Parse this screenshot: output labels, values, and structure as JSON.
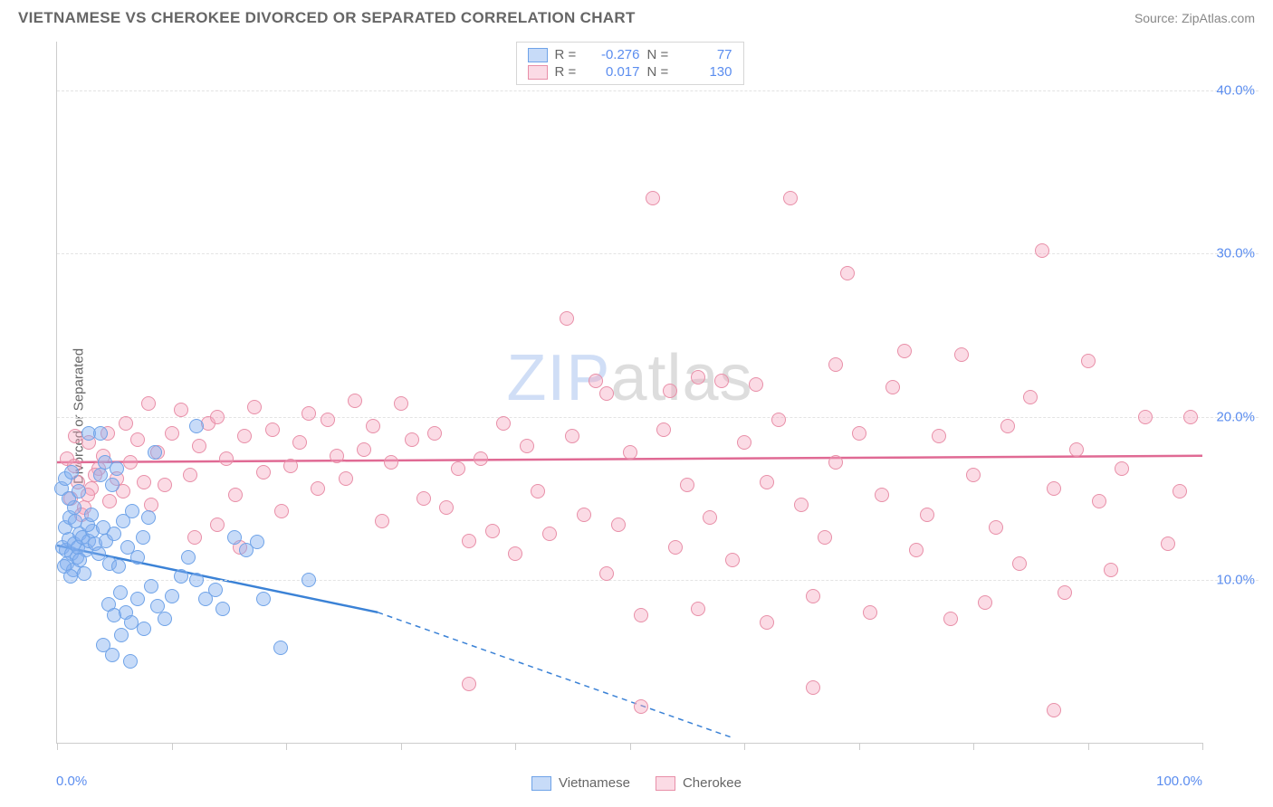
{
  "title": "VIETNAMESE VS CHEROKEE DIVORCED OR SEPARATED CORRELATION CHART",
  "source_label": "Source:",
  "source_name": "ZipAtlas.com",
  "y_axis_label": "Divorced or Separated",
  "watermark_a": "ZIP",
  "watermark_b": "atlas",
  "chart": {
    "type": "scatter",
    "background_color": "#ffffff",
    "grid_color": "#e3e3e3",
    "axis_color": "#cccccc",
    "xlim": [
      0,
      100
    ],
    "ylim": [
      0,
      43
    ],
    "y_ticks": [
      10,
      20,
      30,
      40
    ],
    "y_tick_labels": [
      "10.0%",
      "20.0%",
      "30.0%",
      "40.0%"
    ],
    "x_ticks": [
      0,
      10,
      20,
      30,
      40,
      50,
      60,
      70,
      80,
      90,
      100
    ],
    "x_tick_labels": {
      "0": "0.0%",
      "100": "100.0%"
    },
    "label_color": "#5b8def",
    "label_fontsize": 15,
    "point_radius": 8,
    "point_border_width": 1
  },
  "series": {
    "vietnamese": {
      "label": "Vietnamese",
      "fill": "rgba(130,175,240,0.45)",
      "stroke": "#6fa3e8",
      "r_value": "-0.276",
      "n_value": "77",
      "trend": {
        "color": "#3b82d6",
        "width": 2.5,
        "x1": 0,
        "y1": 12.1,
        "x2_solid": 28,
        "y2_solid": 8.0,
        "x2_dash": 59,
        "y2_dash": 0.3
      },
      "points": [
        [
          0.5,
          12.0
        ],
        [
          0.8,
          11.8
        ],
        [
          1.0,
          12.5
        ],
        [
          1.3,
          11.6
        ],
        [
          1.5,
          12.2
        ],
        [
          1.7,
          11.4
        ],
        [
          2.0,
          12.8
        ],
        [
          0.7,
          13.2
        ],
        [
          1.1,
          13.8
        ],
        [
          1.5,
          14.4
        ],
        [
          0.9,
          11.0
        ],
        [
          1.4,
          10.6
        ],
        [
          1.8,
          12.0
        ],
        [
          2.2,
          12.6
        ],
        [
          2.5,
          11.8
        ],
        [
          2.8,
          12.4
        ],
        [
          3.1,
          13.0
        ],
        [
          0.6,
          10.8
        ],
        [
          1.2,
          10.2
        ],
        [
          1.6,
          13.6
        ],
        [
          2.0,
          11.2
        ],
        [
          2.4,
          10.4
        ],
        [
          2.7,
          13.4
        ],
        [
          3.0,
          14.0
        ],
        [
          3.3,
          12.2
        ],
        [
          3.6,
          11.6
        ],
        [
          4.0,
          13.2
        ],
        [
          4.3,
          12.4
        ],
        [
          4.6,
          11.0
        ],
        [
          5.0,
          12.8
        ],
        [
          5.4,
          10.8
        ],
        [
          5.8,
          13.6
        ],
        [
          6.2,
          12.0
        ],
        [
          6.6,
          14.2
        ],
        [
          7.0,
          11.4
        ],
        [
          7.5,
          12.6
        ],
        [
          8.0,
          13.8
        ],
        [
          8.5,
          17.8
        ],
        [
          3.8,
          16.4
        ],
        [
          4.2,
          17.2
        ],
        [
          4.8,
          15.8
        ],
        [
          5.2,
          16.8
        ],
        [
          0.4,
          15.6
        ],
        [
          0.7,
          16.2
        ],
        [
          1.0,
          15.0
        ],
        [
          1.3,
          16.6
        ],
        [
          1.9,
          15.4
        ],
        [
          2.8,
          19.0
        ],
        [
          3.8,
          19.0
        ],
        [
          12.2,
          19.4
        ],
        [
          4.5,
          8.5
        ],
        [
          5.0,
          7.8
        ],
        [
          5.5,
          9.2
        ],
        [
          6.0,
          8.0
        ],
        [
          6.5,
          7.4
        ],
        [
          7.0,
          8.8
        ],
        [
          7.6,
          7.0
        ],
        [
          8.2,
          9.6
        ],
        [
          8.8,
          8.4
        ],
        [
          9.4,
          7.6
        ],
        [
          10.0,
          9.0
        ],
        [
          10.8,
          10.2
        ],
        [
          11.5,
          11.4
        ],
        [
          12.2,
          10.0
        ],
        [
          13.0,
          8.8
        ],
        [
          13.8,
          9.4
        ],
        [
          14.5,
          8.2
        ],
        [
          15.5,
          12.6
        ],
        [
          16.5,
          11.8
        ],
        [
          17.5,
          12.3
        ],
        [
          4.0,
          6.0
        ],
        [
          4.8,
          5.4
        ],
        [
          5.6,
          6.6
        ],
        [
          6.4,
          5.0
        ],
        [
          18.0,
          8.8
        ],
        [
          19.5,
          5.8
        ],
        [
          22.0,
          10.0
        ]
      ]
    },
    "cherokee": {
      "label": "Cherokee",
      "fill": "rgba(245,165,190,0.40)",
      "stroke": "#e88fa8",
      "r_value": "0.017",
      "n_value": "130",
      "trend": {
        "color": "#e06a94",
        "width": 2.5,
        "x1": 0,
        "y1": 17.2,
        "x2": 100,
        "y2": 17.6
      },
      "points": [
        [
          1.2,
          15.0
        ],
        [
          1.8,
          16.0
        ],
        [
          2.4,
          14.4
        ],
        [
          3.0,
          15.6
        ],
        [
          3.6,
          16.8
        ],
        [
          0.9,
          17.4
        ],
        [
          1.5,
          17.0
        ],
        [
          2.1,
          14.0
        ],
        [
          2.7,
          15.2
        ],
        [
          3.3,
          16.4
        ],
        [
          4.0,
          17.6
        ],
        [
          4.6,
          14.8
        ],
        [
          5.2,
          16.2
        ],
        [
          5.8,
          15.4
        ],
        [
          6.4,
          17.2
        ],
        [
          7.0,
          18.6
        ],
        [
          7.6,
          16.0
        ],
        [
          8.2,
          14.6
        ],
        [
          8.8,
          17.8
        ],
        [
          9.4,
          15.8
        ],
        [
          10.0,
          19.0
        ],
        [
          10.8,
          20.4
        ],
        [
          11.6,
          16.4
        ],
        [
          12.4,
          18.2
        ],
        [
          13.2,
          19.6
        ],
        [
          14.0,
          20.0
        ],
        [
          14.8,
          17.4
        ],
        [
          15.6,
          15.2
        ],
        [
          16.4,
          18.8
        ],
        [
          17.2,
          20.6
        ],
        [
          18.0,
          16.6
        ],
        [
          18.8,
          19.2
        ],
        [
          19.6,
          14.2
        ],
        [
          20.4,
          17.0
        ],
        [
          21.2,
          18.4
        ],
        [
          22.0,
          20.2
        ],
        [
          22.8,
          15.6
        ],
        [
          23.6,
          19.8
        ],
        [
          24.4,
          17.6
        ],
        [
          25.2,
          16.2
        ],
        [
          26.0,
          21.0
        ],
        [
          26.8,
          18.0
        ],
        [
          27.6,
          19.4
        ],
        [
          28.4,
          13.6
        ],
        [
          29.2,
          17.2
        ],
        [
          30.0,
          20.8
        ],
        [
          31.0,
          18.6
        ],
        [
          32.0,
          15.0
        ],
        [
          33.0,
          19.0
        ],
        [
          34.0,
          14.4
        ],
        [
          35.0,
          16.8
        ],
        [
          36.0,
          12.4
        ],
        [
          37.0,
          17.4
        ],
        [
          38.0,
          13.0
        ],
        [
          39.0,
          19.6
        ],
        [
          40.0,
          11.6
        ],
        [
          41.0,
          18.2
        ],
        [
          42.0,
          15.4
        ],
        [
          43.0,
          12.8
        ],
        [
          44.5,
          26.0
        ],
        [
          45.0,
          18.8
        ],
        [
          46.0,
          14.0
        ],
        [
          47.0,
          22.2
        ],
        [
          48.0,
          10.4
        ],
        [
          49.0,
          13.4
        ],
        [
          50.0,
          17.8
        ],
        [
          51.0,
          7.8
        ],
        [
          52.0,
          33.4
        ],
        [
          53.0,
          19.2
        ],
        [
          53.5,
          21.6
        ],
        [
          54.0,
          12.0
        ],
        [
          55.0,
          15.8
        ],
        [
          56.0,
          8.2
        ],
        [
          57.0,
          13.8
        ],
        [
          58.0,
          22.2
        ],
        [
          59.0,
          11.2
        ],
        [
          60.0,
          18.4
        ],
        [
          61.0,
          22.0
        ],
        [
          62.0,
          16.0
        ],
        [
          63.0,
          19.8
        ],
        [
          64.0,
          33.4
        ],
        [
          65.0,
          14.6
        ],
        [
          66.0,
          9.0
        ],
        [
          67.0,
          12.6
        ],
        [
          68.0,
          17.2
        ],
        [
          69.0,
          28.8
        ],
        [
          70.0,
          19.0
        ],
        [
          71.0,
          8.0
        ],
        [
          72.0,
          15.2
        ],
        [
          73.0,
          21.8
        ],
        [
          74.0,
          24.0
        ],
        [
          75.0,
          11.8
        ],
        [
          76.0,
          14.0
        ],
        [
          77.0,
          18.8
        ],
        [
          78.0,
          7.6
        ],
        [
          79.0,
          23.8
        ],
        [
          80.0,
          16.4
        ],
        [
          81.0,
          8.6
        ],
        [
          82.0,
          13.2
        ],
        [
          83.0,
          19.4
        ],
        [
          84.0,
          11.0
        ],
        [
          85.0,
          21.2
        ],
        [
          86.0,
          30.2
        ],
        [
          87.0,
          15.6
        ],
        [
          88.0,
          9.2
        ],
        [
          89.0,
          18.0
        ],
        [
          90.0,
          23.4
        ],
        [
          91.0,
          14.8
        ],
        [
          92.0,
          10.6
        ],
        [
          93.0,
          16.8
        ],
        [
          87.0,
          2.0
        ],
        [
          95.0,
          20.0
        ],
        [
          36.0,
          3.6
        ],
        [
          97.0,
          12.2
        ],
        [
          98.0,
          15.4
        ],
        [
          99.0,
          20.0
        ],
        [
          51.0,
          2.2
        ],
        [
          66.0,
          3.4
        ],
        [
          62.0,
          7.4
        ],
        [
          48.0,
          21.4
        ],
        [
          56.0,
          22.4
        ],
        [
          68.0,
          23.2
        ],
        [
          12.0,
          12.6
        ],
        [
          14.0,
          13.4
        ],
        [
          16.0,
          12.0
        ],
        [
          8.0,
          20.8
        ],
        [
          6.0,
          19.6
        ],
        [
          4.4,
          19.0
        ],
        [
          2.8,
          18.4
        ],
        [
          1.6,
          18.8
        ]
      ]
    }
  },
  "stats_box": {
    "r_label": "R =",
    "n_label": "N ="
  }
}
